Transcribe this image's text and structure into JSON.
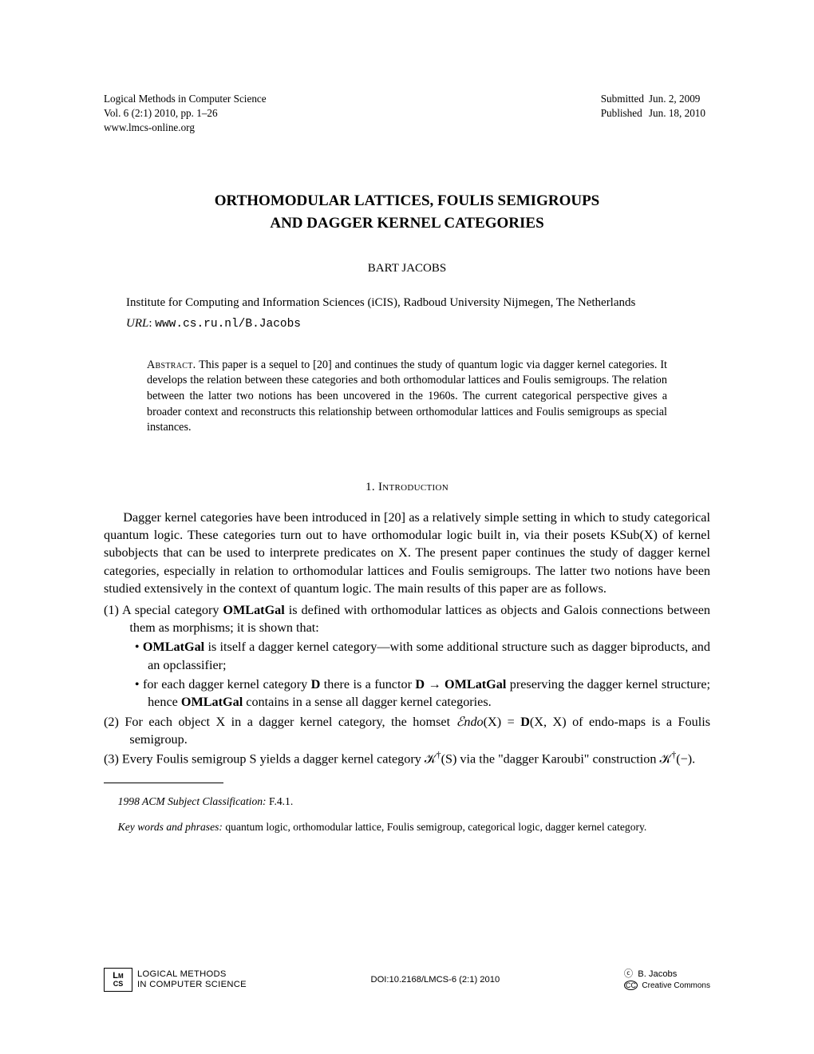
{
  "header": {
    "journal": "Logical Methods in Computer Science",
    "volume_line": "Vol. 6 (2:1) 2010, pp. 1–26",
    "site": "www.lmcs-online.org",
    "submitted_label": "Submitted",
    "submitted_date": "Jun.  2, 2009",
    "published_label": "Published",
    "published_date": "Jun. 18, 2010"
  },
  "title_line1": "ORTHOMODULAR LATTICES, FOULIS SEMIGROUPS",
  "title_line2": "AND DAGGER KERNEL CATEGORIES",
  "author": "BART JACOBS",
  "affiliation": "Institute for Computing and Information Sciences (iCIS), Radboud University Nijmegen, The Netherlands",
  "url_label": "URL",
  "url_value": "www.cs.ru.nl/B.Jacobs",
  "abstract_label": "Abstract.",
  "abstract_text": "This paper is a sequel to [20] and continues the study of quantum logic via dagger kernel categories. It develops the relation between these categories and both orthomodular lattices and Foulis semigroups. The relation between the latter two notions has been uncovered in the 1960s. The current categorical perspective gives a broader context and reconstructs this relationship between orthomodular lattices and Foulis semigroups as special instances.",
  "section_num": "1.",
  "section_title": "Introduction",
  "intro_para": "Dagger kernel categories have been introduced in [20] as a relatively simple setting in which to study categorical quantum logic. These categories turn out to have orthomodular logic built in, via their posets KSub(X) of kernel subobjects that can be used to interprete predicates on X. The present paper continues the study of dagger kernel categories, especially in relation to orthomodular lattices and Foulis semigroups. The latter two notions have been studied extensively in the context of quantum logic. The main results of this paper are as follows.",
  "item1_lead": "(1) A special category ",
  "item1_bold1": "OMLatGal",
  "item1_tail": " is defined with orthomodular lattices as objects and Galois connections between them as morphisms; it is shown that:",
  "item1a_bold": "OMLatGal",
  "item1a_text": " is itself a dagger kernel category—with some additional structure such as dagger biproducts, and an opclassifier;",
  "item1b_lead": "for each dagger kernel category ",
  "item1b_D": "D",
  "item1b_mid": " there is a functor ",
  "item1b_arrow": "D → OMLatGal",
  "item1b_tail1": " preserving the dagger kernel structure; hence ",
  "item1b_bold2": "OMLatGal",
  "item1b_tail2": " contains in a sense all dagger kernel categories.",
  "item2_lead": "(2) For each object X in a dagger kernel category, the homset ",
  "item2_endo": "ℰndo",
  "item2_mid": "(X) = ",
  "item2_D": "D",
  "item2_tail": "(X, X) of endo-maps is a Foulis semigroup.",
  "item3_lead": "(3) Every Foulis semigroup S yields a dagger kernel category 𝒦",
  "item3_dag1": "†",
  "item3_mid": "(S) via the \"dagger Karoubi\" construction 𝒦",
  "item3_dag2": "†",
  "item3_tail": "(−).",
  "footnote1_label": "1998 ACM Subject Classification:",
  "footnote1_text": " F.4.1.",
  "footnote2_label": "Key words and phrases:",
  "footnote2_text": " quantum logic, orthomodular lattice, Foulis semigroup, categorical logic, dagger kernel category.",
  "footer": {
    "logo_top": "L",
    "logo_mid": "M",
    "logo_bot": "CS",
    "lcs_line1": "LOGICAL METHODS",
    "lcs_line2": "IN COMPUTER SCIENCE",
    "doi": "DOI:10.2168/LMCS-6 (2:1) 2010",
    "copyright_sym": "ⓒ",
    "copyright_name": "B. Jacobs",
    "cc_sym": "CC",
    "cc_text": "Creative Commons"
  },
  "colors": {
    "text": "#000000",
    "background": "#ffffff"
  },
  "typography": {
    "body_font": "Times New Roman",
    "body_size_pt": 12,
    "header_size_pt": 10,
    "title_size_pt": 14,
    "abstract_size_pt": 10.5,
    "footer_size_pt": 8
  }
}
